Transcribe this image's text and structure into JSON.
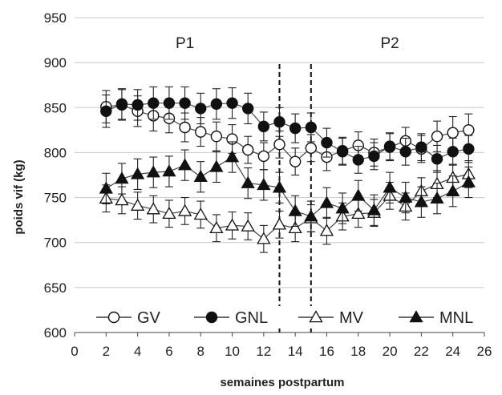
{
  "chart_data": {
    "type": "line",
    "title": "",
    "xlabel": "semaines postpartum",
    "ylabel": "poids vif (kg)",
    "xlim": [
      0,
      26
    ],
    "ylim": [
      600,
      950
    ],
    "xticks": [
      0,
      2,
      4,
      6,
      8,
      10,
      12,
      14,
      16,
      18,
      20,
      22,
      24,
      26
    ],
    "yticks": [
      600,
      650,
      700,
      750,
      800,
      850,
      900,
      950
    ],
    "grid": "horizontal",
    "legend_position": "bottom",
    "annotations": [
      {
        "text": "P1",
        "x": 7
      },
      {
        "text": "P2",
        "x": 20
      }
    ],
    "vlines": [
      13,
      15
    ],
    "x": [
      2,
      3,
      4,
      5,
      6,
      7,
      8,
      9,
      10,
      11,
      12,
      13,
      14,
      15,
      16,
      17,
      18,
      19,
      20,
      21,
      22,
      23,
      24,
      25
    ],
    "series": [
      {
        "name": "GV",
        "marker": "circle-open",
        "values": [
          851,
          853,
          846,
          841,
          838,
          828,
          823,
          818,
          815,
          803,
          796,
          809,
          790,
          805,
          795,
          802,
          808,
          800,
          806,
          813,
          804,
          818,
          822,
          825
        ],
        "errors": [
          18,
          17,
          17,
          17,
          16,
          16,
          16,
          16,
          16,
          15,
          15,
          15,
          15,
          15,
          15,
          15,
          15,
          15,
          15,
          15,
          15,
          17,
          18,
          18
        ]
      },
      {
        "name": "GNL",
        "marker": "circle-filled",
        "values": [
          846,
          854,
          853,
          855,
          855,
          855,
          849,
          854,
          855,
          849,
          829,
          834,
          827,
          828,
          811,
          801,
          792,
          796,
          807,
          801,
          806,
          793,
          801,
          804
        ],
        "errors": [
          18,
          17,
          17,
          18,
          18,
          18,
          17,
          17,
          17,
          17,
          16,
          16,
          16,
          16,
          16,
          15,
          15,
          15,
          15,
          15,
          15,
          15,
          15,
          15
        ]
      },
      {
        "name": "MV",
        "marker": "triangle-open",
        "values": [
          749,
          747,
          741,
          737,
          732,
          735,
          731,
          716,
          719,
          718,
          704,
          720,
          716,
          727,
          713,
          729,
          732,
          733,
          752,
          740,
          757,
          765,
          772,
          776
        ],
        "errors": [
          15,
          15,
          15,
          15,
          15,
          15,
          15,
          15,
          15,
          15,
          15,
          15,
          15,
          15,
          15,
          15,
          15,
          15,
          15,
          15,
          15,
          15,
          15,
          15
        ]
      },
      {
        "name": "MNL",
        "marker": "triangle-filled",
        "values": [
          760,
          771,
          776,
          778,
          779,
          786,
          773,
          784,
          795,
          766,
          764,
          761,
          735,
          729,
          744,
          738,
          752,
          736,
          761,
          750,
          745,
          749,
          757,
          767
        ],
        "errors": [
          17,
          17,
          17,
          17,
          17,
          17,
          17,
          17,
          17,
          17,
          17,
          17,
          17,
          17,
          17,
          17,
          17,
          17,
          17,
          17,
          17,
          17,
          17,
          17
        ]
      }
    ]
  }
}
